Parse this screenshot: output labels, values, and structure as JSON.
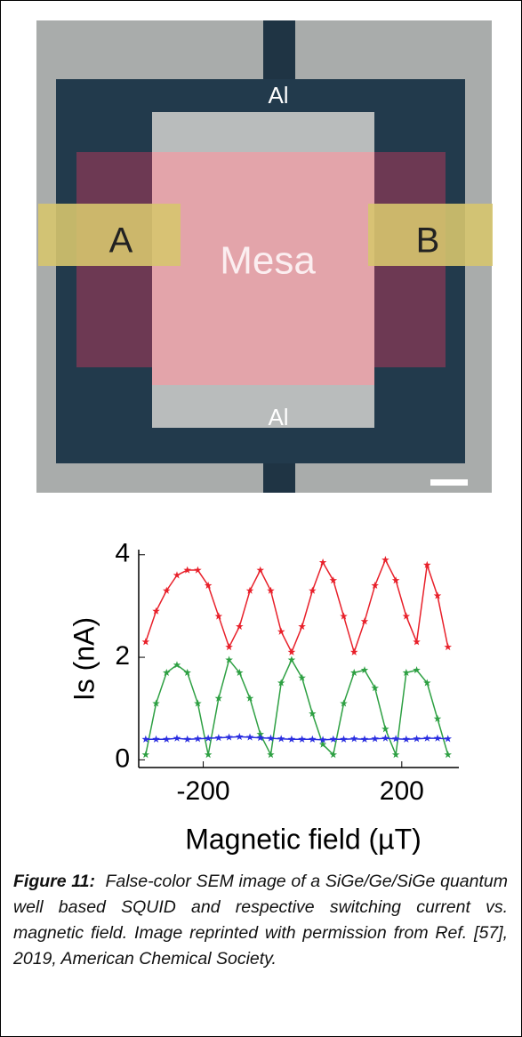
{
  "sem_image": {
    "labels": [
      "Al",
      "Al",
      "A",
      "B",
      "Mesa"
    ]
  },
  "chart_data": {
    "type": "line",
    "x_label": "Magnetic field (µT)",
    "y_label": "Is  (nA)",
    "x": [
      -316,
      -295,
      -274,
      -253,
      -232,
      -211,
      -190,
      -169,
      -148,
      -127,
      -106,
      -85,
      -64,
      -43,
      -22,
      -1,
      20,
      41,
      62,
      83,
      104,
      125,
      146,
      167,
      188,
      209,
      230,
      251,
      272,
      293
    ],
    "series": [
      {
        "color": "#e8202a",
        "values": [
          2.3,
          2.9,
          3.3,
          3.6,
          3.7,
          3.7,
          3.4,
          2.8,
          2.2,
          2.6,
          3.3,
          3.7,
          3.3,
          2.5,
          2.1,
          2.6,
          3.3,
          3.85,
          3.5,
          2.8,
          2.1,
          2.7,
          3.4,
          3.9,
          3.5,
          2.8,
          2.3,
          3.8,
          3.2,
          2.2
        ]
      },
      {
        "color": "#2ea043",
        "values": [
          0.1,
          1.1,
          1.7,
          1.85,
          1.7,
          1.1,
          0.1,
          1.2,
          1.95,
          1.7,
          1.2,
          0.5,
          0.1,
          1.5,
          1.95,
          1.6,
          0.9,
          0.3,
          0.1,
          1.1,
          1.7,
          1.75,
          1.4,
          0.6,
          0.1,
          1.7,
          1.75,
          1.5,
          0.8,
          0.1
        ]
      },
      {
        "color": "#2a2ee0",
        "values": [
          0.4,
          0.4,
          0.4,
          0.42,
          0.4,
          0.41,
          0.42,
          0.43,
          0.44,
          0.45,
          0.44,
          0.43,
          0.42,
          0.41,
          0.4,
          0.4,
          0.4,
          0.39,
          0.4,
          0.4,
          0.41,
          0.4,
          0.41,
          0.42,
          0.41,
          0.4,
          0.41,
          0.42,
          0.42,
          0.41
        ]
      }
    ],
    "xlim": [
      -330,
      315
    ],
    "ylim": [
      -0.15,
      4.1
    ],
    "xticks": [
      -200,
      200
    ],
    "yticks": [
      0,
      2,
      4
    ],
    "grid": false
  },
  "caption": {
    "label": "Figure 11:",
    "text": "False-color SEM image of a SiGe/Ge/SiGe quantum well based SQUID and respective switching current vs. magnetic field. Image reprinted with permission from Ref. [57], 2019, American Chemical Society."
  }
}
